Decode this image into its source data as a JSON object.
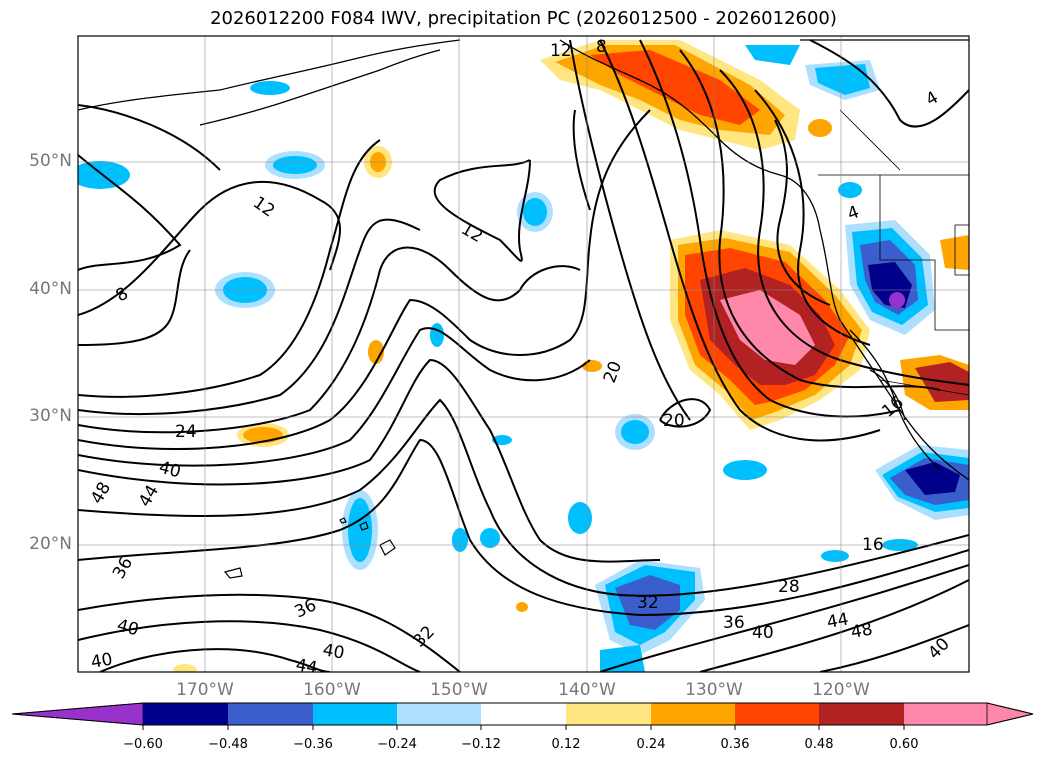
{
  "title": "2026012200 F084 IWV, precipitation PC (2026012500 - 2026012600)",
  "lat_labels": [
    "50°N",
    "40°N",
    "30°N",
    "20°N"
  ],
  "lon_labels": [
    "170°W",
    "160°W",
    "150°W",
    "140°W",
    "130°W",
    "120°W"
  ],
  "contour_labels": [
    "12",
    "8",
    "12",
    "12",
    "8",
    "24",
    "40",
    "48",
    "44",
    "36",
    "36",
    "40",
    "40",
    "32",
    "40",
    "44",
    "20",
    "20",
    "16",
    "28",
    "36",
    "40",
    "44",
    "48",
    "40",
    "32",
    "4",
    "4",
    "16"
  ],
  "colorbar": {
    "tick_labels": [
      "−0.60",
      "−0.48",
      "−0.36",
      "−0.24",
      "−0.12",
      "0.12",
      "0.24",
      "0.36",
      "0.48",
      "0.60"
    ],
    "colors": [
      "#9932CC",
      "#00008B",
      "#3A5FCD",
      "#00BFFF",
      "#ADDFFF",
      "#FFFFFF",
      "#FFE680",
      "#FFA500",
      "#FF4500",
      "#B22222",
      "#FF88AA"
    ]
  }
}
